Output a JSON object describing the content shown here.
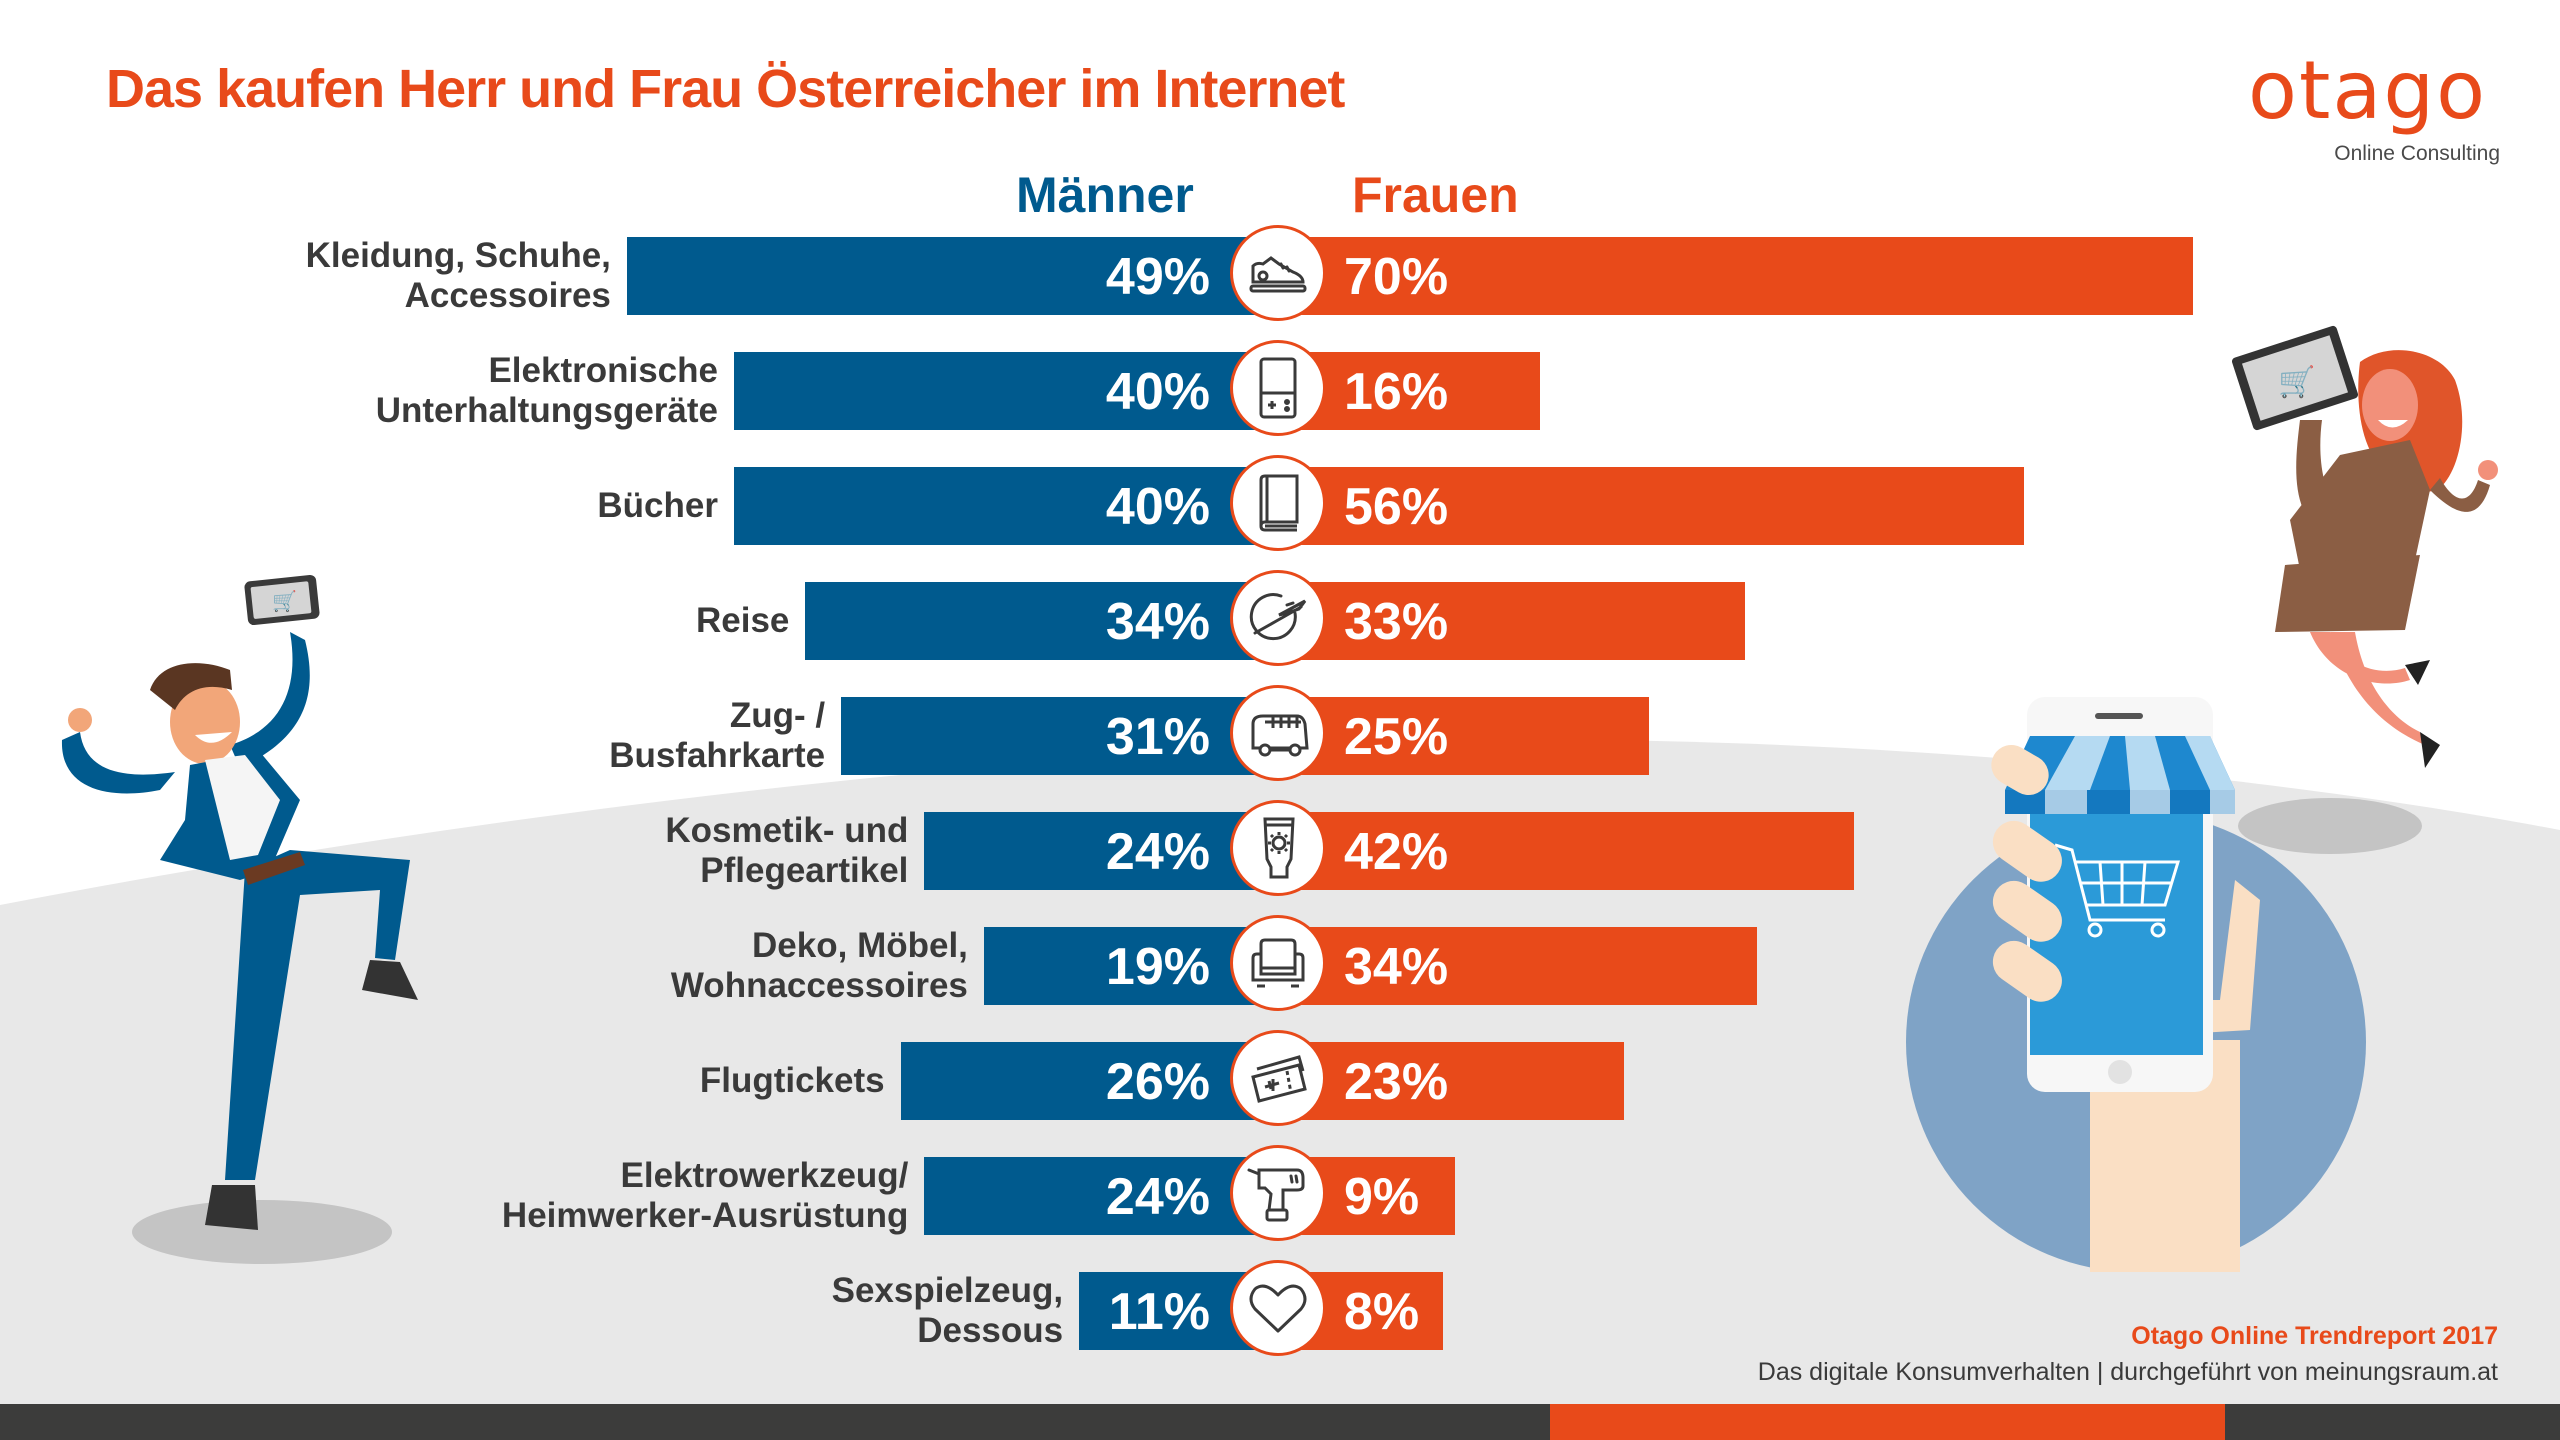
{
  "title": "Das kaufen Herr und Frau Österreicher im Internet",
  "logo": {
    "name": "otago",
    "tagline": "Online Consulting"
  },
  "colors": {
    "men": "#005A8E",
    "women": "#E84A1A",
    "text": "#3a3a3a",
    "background_grey": "#E8E8E8",
    "footer_dark": "#3c3c3b"
  },
  "footer": {
    "title": "Otago Online Trendreport 2017",
    "subtitle": "Das digitale Konsumverhalten | durchgeführt von meinungsraum.at"
  },
  "illustrations": {
    "left": "businessman-with-smartphone-cart",
    "right_top": "businesswoman-with-tablet-cart",
    "right_bottom": "hand-holding-smartphone-shop-cart"
  },
  "chart_data": {
    "type": "bar",
    "orientation": "horizontal-diverging",
    "title": "Das kaufen Herr und Frau Österreicher im Internet",
    "unit": "%",
    "legend": [
      "Männer",
      "Frauen"
    ],
    "legend_placement": "top-center",
    "categories": [
      "Kleidung, Schuhe, Accessoires",
      "Elektronische Unterhaltungsgeräte",
      "Bücher",
      "Reise",
      "Zug- / Busfahrkarte",
      "Kosmetik- und Pflegeartikel",
      "Deko, Möbel, Wohnaccessoires",
      "Flugtickets",
      "Elektrowerkzeug/ Heimwerker-Ausrüstung",
      "Sexspielzeug, Dessous"
    ],
    "series": [
      {
        "name": "Männer",
        "values": [
          49,
          40,
          40,
          34,
          31,
          24,
          19,
          26,
          24,
          11
        ]
      },
      {
        "name": "Frauen",
        "values": [
          70,
          16,
          56,
          33,
          25,
          42,
          34,
          23,
          9,
          8
        ]
      }
    ],
    "rows": [
      {
        "label_lines": [
          "Kleidung, Schuhe,",
          "Accessoires"
        ],
        "men": 49,
        "women": 70,
        "men_label": "49%",
        "women_label": "70%",
        "icon": "sneaker-icon"
      },
      {
        "label_lines": [
          "Elektronische",
          "Unterhaltungsgeräte"
        ],
        "men": 40,
        "women": 16,
        "men_label": "40%",
        "women_label": "16%",
        "icon": "handheld-console-icon"
      },
      {
        "label_lines": [
          "Bücher"
        ],
        "men": 40,
        "women": 56,
        "men_label": "40%",
        "women_label": "56%",
        "icon": "book-icon"
      },
      {
        "label_lines": [
          "Reise"
        ],
        "men": 34,
        "women": 33,
        "men_label": "34%",
        "women_label": "33%",
        "icon": "globe-plane-icon"
      },
      {
        "label_lines": [
          "Zug- /",
          "Busfahrkarte"
        ],
        "men": 31,
        "women": 25,
        "men_label": "31%",
        "women_label": "25%",
        "icon": "bus-icon"
      },
      {
        "label_lines": [
          "Kosmetik- und",
          "Pflegeartikel"
        ],
        "men": 24,
        "women": 42,
        "men_label": "24%",
        "women_label": "42%",
        "icon": "sunscreen-tube-icon"
      },
      {
        "label_lines": [
          "Deko, Möbel,",
          "Wohnaccessoires"
        ],
        "men": 19,
        "women": 34,
        "men_label": "19%",
        "women_label": "34%",
        "icon": "armchair-icon"
      },
      {
        "label_lines": [
          "Flugtickets"
        ],
        "men": 26,
        "women": 23,
        "men_label": "26%",
        "women_label": "23%",
        "icon": "flight-ticket-icon"
      },
      {
        "label_lines": [
          "Elektrowerkzeug/",
          "Heimwerker-Ausrüstung"
        ],
        "men": 24,
        "women": 9,
        "men_label": "24%",
        "women_label": "9%",
        "icon": "power-drill-icon"
      },
      {
        "label_lines": [
          "Sexspielzeug,",
          "Dessous"
        ],
        "men": 11,
        "women": 8,
        "men_label": "11%",
        "women_label": "8%",
        "icon": "heart-icon"
      }
    ],
    "xlabel": "",
    "ylabel": "",
    "xlim": [
      0,
      100
    ],
    "grid": false
  }
}
